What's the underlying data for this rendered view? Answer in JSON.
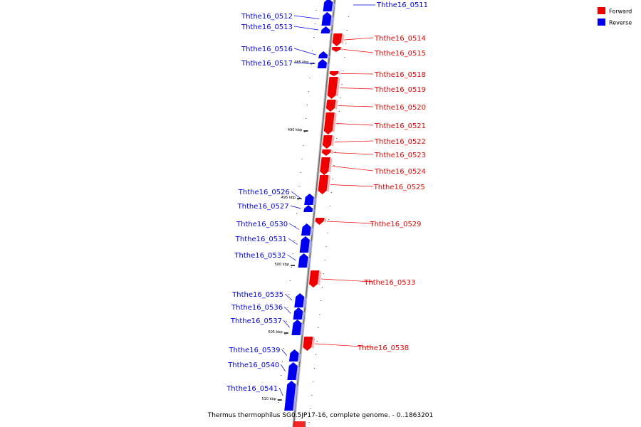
{
  "caption": "Thermus thermophilus SG0.5JP17-16, complete genome. - 0..1863201",
  "legend": {
    "forward": {
      "label": "Forward",
      "color": "#ee0000"
    },
    "reverse": {
      "label": "Reverse",
      "color": "#0000ee"
    }
  },
  "ticks": [
    "485 kbp",
    "490 kbp",
    "495 kbp",
    "500 kbp",
    "505 kbp",
    "510 kbp"
  ],
  "genes": [
    {
      "name": "Ththe16_0511",
      "strand": "reverse"
    },
    {
      "name": "Ththe16_0512",
      "strand": "reverse"
    },
    {
      "name": "Ththe16_0513",
      "strand": "reverse"
    },
    {
      "name": "Ththe16_0514",
      "strand": "forward"
    },
    {
      "name": "Ththe16_0515",
      "strand": "forward"
    },
    {
      "name": "Ththe16_0516",
      "strand": "reverse"
    },
    {
      "name": "Ththe16_0517",
      "strand": "reverse"
    },
    {
      "name": "Ththe16_0518",
      "strand": "forward"
    },
    {
      "name": "Ththe16_0519",
      "strand": "forward"
    },
    {
      "name": "Ththe16_0520",
      "strand": "forward"
    },
    {
      "name": "Ththe16_0521",
      "strand": "forward"
    },
    {
      "name": "Ththe16_0522",
      "strand": "forward"
    },
    {
      "name": "Ththe16_0523",
      "strand": "forward"
    },
    {
      "name": "Ththe16_0524",
      "strand": "forward"
    },
    {
      "name": "Ththe16_0525",
      "strand": "forward"
    },
    {
      "name": "Ththe16_0526",
      "strand": "reverse"
    },
    {
      "name": "Ththe16_0527",
      "strand": "reverse"
    },
    {
      "name": "Ththe16_0529",
      "strand": "forward"
    },
    {
      "name": "Ththe16_0530",
      "strand": "reverse"
    },
    {
      "name": "Ththe16_0531",
      "strand": "reverse"
    },
    {
      "name": "Ththe16_0532",
      "strand": "reverse"
    },
    {
      "name": "Ththe16_0533",
      "strand": "forward"
    },
    {
      "name": "Ththe16_0535",
      "strand": "reverse"
    },
    {
      "name": "Ththe16_0536",
      "strand": "reverse"
    },
    {
      "name": "Ththe16_0537",
      "strand": "reverse"
    },
    {
      "name": "Ththe16_0538",
      "strand": "forward"
    },
    {
      "name": "Ththe16_0539",
      "strand": "reverse"
    },
    {
      "name": "Ththe16_0540",
      "strand": "reverse"
    },
    {
      "name": "Ththe16_0541",
      "strand": "reverse"
    }
  ]
}
